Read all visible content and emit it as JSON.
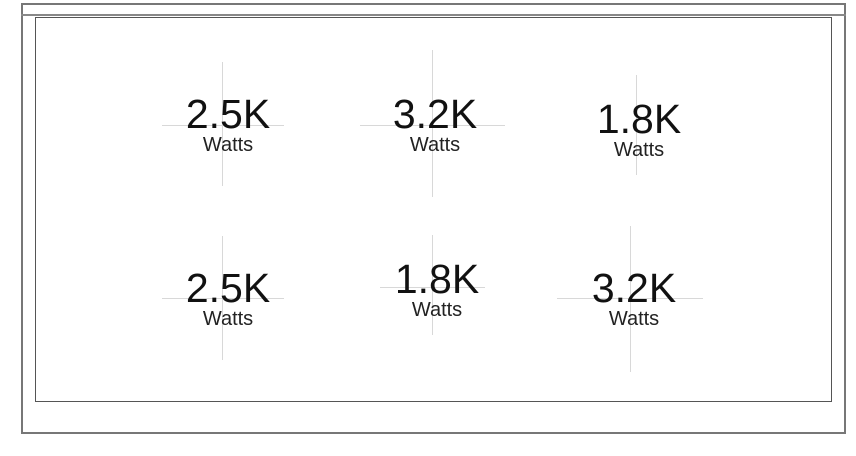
{
  "widgets": [
    {
      "value": "2.5K",
      "unit": "Watts"
    },
    {
      "value": "3.2K",
      "unit": "Watts"
    },
    {
      "value": "1.8K",
      "unit": "Watts"
    },
    {
      "value": "2.5K",
      "unit": "Watts"
    },
    {
      "value": "1.8K",
      "unit": "Watts"
    },
    {
      "value": "3.2K",
      "unit": "Watts"
    }
  ]
}
